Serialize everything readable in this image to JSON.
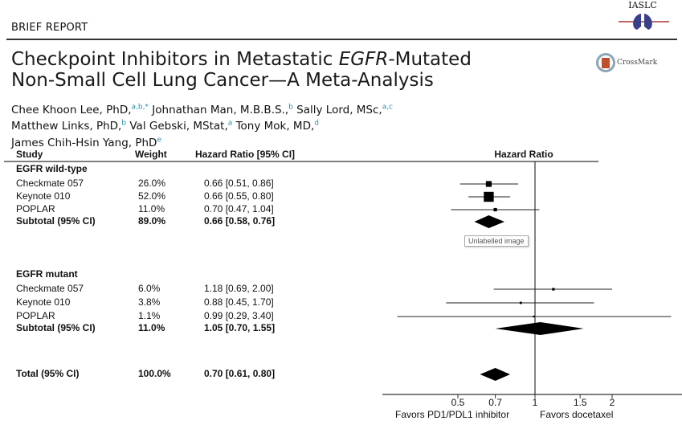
{
  "header": {
    "section": "BRIEF REPORT",
    "logo_text": "IASLC",
    "crossmark_label": "CrossMark"
  },
  "article": {
    "title_parts": [
      "Checkpoint Inhibitors in Metastatic ",
      "EGFR",
      "-Mutated",
      "Non-Small Cell Lung Cancer—A Meta-Analysis"
    ],
    "authors": [
      {
        "name": "Chee Khoon Lee, PhD,",
        "sup": "a,b,*"
      },
      {
        "name": "Johnathan Man, M.B.B.S.,",
        "sup": "b"
      },
      {
        "name": "Sally Lord, MSc,",
        "sup": "a,c"
      },
      {
        "name": "Matthew Links, PhD,",
        "sup": "b"
      },
      {
        "name": "Val Gebski, MStat,",
        "sup": "a"
      },
      {
        "name": "Tony Mok, MD,",
        "sup": "d"
      },
      {
        "name": "James Chih-Hsin Yang, PhD",
        "sup": "e"
      }
    ]
  },
  "tooltip": "Unlabelled image",
  "chart_data": {
    "type": "forest",
    "columns": {
      "study": "Study",
      "weight": "Weight",
      "hr": "Hazard Ratio [95% CI]",
      "plot": "Hazard Ratio"
    },
    "groups": [
      {
        "label": "EGFR wild-type",
        "studies": [
          {
            "name": "Checkmate 057",
            "weight": "26.0%",
            "hr": 0.66,
            "lo": 0.51,
            "hi": 0.86,
            "text": "0.66 [0.51, 0.86]"
          },
          {
            "name": "Keynote 010",
            "weight": "52.0%",
            "hr": 0.66,
            "lo": 0.55,
            "hi": 0.8,
            "text": "0.66 [0.55, 0.80]"
          },
          {
            "name": "POPLAR",
            "weight": "11.0%",
            "hr": 0.7,
            "lo": 0.47,
            "hi": 1.04,
            "text": "0.70 [0.47, 1.04]"
          }
        ],
        "subtotal": {
          "name": "Subtotal (95% CI)",
          "weight": "89.0%",
          "hr": 0.66,
          "lo": 0.58,
          "hi": 0.76,
          "text": "0.66 [0.58, 0.76]"
        }
      },
      {
        "label": "EGFR mutant",
        "studies": [
          {
            "name": "Checkmate 057",
            "weight": "6.0%",
            "hr": 1.18,
            "lo": 0.69,
            "hi": 2.0,
            "text": "1.18 [0.69, 2.00]"
          },
          {
            "name": "Keynote 010",
            "weight": "3.8%",
            "hr": 0.88,
            "lo": 0.45,
            "hi": 1.7,
            "text": "0.88 [0.45, 1.70]"
          },
          {
            "name": "POPLAR",
            "weight": "1.1%",
            "hr": 0.99,
            "lo": 0.29,
            "hi": 3.4,
            "text": "0.99 [0.29, 3.40]"
          }
        ],
        "subtotal": {
          "name": "Subtotal (95% CI)",
          "weight": "11.0%",
          "hr": 1.05,
          "lo": 0.7,
          "hi": 1.55,
          "text": "1.05 [0.70, 1.55]"
        }
      }
    ],
    "total": {
      "name": "Total (95% CI)",
      "weight": "100.0%",
      "hr": 0.7,
      "lo": 0.61,
      "hi": 0.8,
      "text": "0.70 [0.61, 0.80]"
    },
    "x_scale": "log",
    "x_ticks": [
      0.5,
      0.7,
      1,
      1.5,
      2
    ],
    "x_tick_labels": [
      "0.5",
      "0.7",
      "1",
      "1.5",
      "2"
    ],
    "reference_line": 1,
    "favors_left": "Favors PD1/PDL1 inhibitor",
    "favors_right": "Favors docetaxel"
  }
}
